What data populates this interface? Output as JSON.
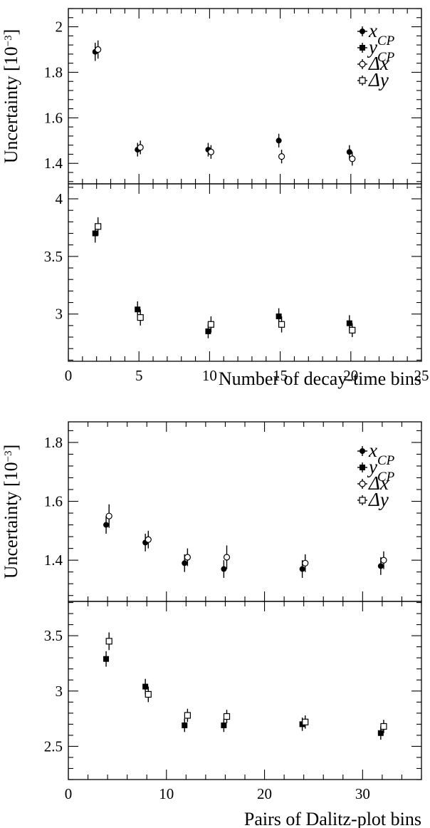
{
  "chart_data": [
    {
      "type": "scatter",
      "x_axis": {
        "label": "Number of decay-time bins",
        "range": [
          0,
          25
        ],
        "ticks": [
          0,
          5,
          10,
          15,
          20,
          25
        ]
      },
      "y_axis_label": "Uncertainty [10^-3]",
      "legend": [
        {
          "marker": "filled-circle",
          "label": "x_CP"
        },
        {
          "marker": "filled-square",
          "label": "y_CP"
        },
        {
          "marker": "open-circle",
          "label": "Δx"
        },
        {
          "marker": "open-square",
          "label": "Δy"
        }
      ],
      "legend_placement": "top-right",
      "panels": [
        {
          "range": [
            1.31,
            2.08
          ],
          "ticks": [
            1.4,
            1.6,
            1.8,
            2
          ],
          "series": [
            {
              "name": "x_CP",
              "marker": "filled-circle",
              "offset": -0.1,
              "points": [
                {
                  "x": 2,
                  "y": 1.89,
                  "err": 0.04
                },
                {
                  "x": 5,
                  "y": 1.46,
                  "err": 0.03
                },
                {
                  "x": 10,
                  "y": 1.46,
                  "err": 0.03
                },
                {
                  "x": 15,
                  "y": 1.5,
                  "err": 0.03
                },
                {
                  "x": 20,
                  "y": 1.45,
                  "err": 0.03
                }
              ]
            },
            {
              "name": "Δx",
              "marker": "open-circle",
              "offset": 0.1,
              "points": [
                {
                  "x": 2,
                  "y": 1.9,
                  "err": 0.04
                },
                {
                  "x": 5,
                  "y": 1.47,
                  "err": 0.03
                },
                {
                  "x": 10,
                  "y": 1.45,
                  "err": 0.03
                },
                {
                  "x": 15,
                  "y": 1.43,
                  "err": 0.03
                },
                {
                  "x": 20,
                  "y": 1.42,
                  "err": 0.03
                }
              ]
            }
          ]
        },
        {
          "range": [
            2.59,
            4.13
          ],
          "ticks": [
            3,
            3.5,
            4
          ],
          "series": [
            {
              "name": "y_CP",
              "marker": "filled-square",
              "offset": -0.1,
              "points": [
                {
                  "x": 2,
                  "y": 3.7,
                  "err": 0.08
                },
                {
                  "x": 5,
                  "y": 3.04,
                  "err": 0.07
                },
                {
                  "x": 10,
                  "y": 2.85,
                  "err": 0.06
                },
                {
                  "x": 15,
                  "y": 2.98,
                  "err": 0.07
                },
                {
                  "x": 20,
                  "y": 2.92,
                  "err": 0.07
                }
              ]
            },
            {
              "name": "Δy",
              "marker": "open-square",
              "offset": 0.1,
              "points": [
                {
                  "x": 2,
                  "y": 3.76,
                  "err": 0.08
                },
                {
                  "x": 5,
                  "y": 2.97,
                  "err": 0.07
                },
                {
                  "x": 10,
                  "y": 2.91,
                  "err": 0.07
                },
                {
                  "x": 15,
                  "y": 2.91,
                  "err": 0.07
                },
                {
                  "x": 20,
                  "y": 2.86,
                  "err": 0.06
                }
              ]
            }
          ]
        }
      ]
    },
    {
      "type": "scatter",
      "x_axis": {
        "label": "Pairs of Dalitz-plot bins",
        "range": [
          0,
          36
        ],
        "ticks": [
          0,
          10,
          20,
          30
        ]
      },
      "y_axis_label": "Uncertainty [10^-3]",
      "legend": [
        {
          "marker": "filled-circle",
          "label": "x_CP"
        },
        {
          "marker": "filled-square",
          "label": "y_CP"
        },
        {
          "marker": "open-circle",
          "label": "Δx"
        },
        {
          "marker": "open-square",
          "label": "Δy"
        }
      ],
      "legend_placement": "top-right",
      "panels": [
        {
          "range": [
            1.26,
            1.87
          ],
          "ticks": [
            1.4,
            1.6,
            1.8
          ],
          "series": [
            {
              "name": "x_CP",
              "marker": "filled-circle",
              "offset": -0.15,
              "points": [
                {
                  "x": 4,
                  "y": 1.52,
                  "err": 0.03
                },
                {
                  "x": 8,
                  "y": 1.46,
                  "err": 0.03
                },
                {
                  "x": 12,
                  "y": 1.39,
                  "err": 0.03
                },
                {
                  "x": 16,
                  "y": 1.37,
                  "err": 0.03
                },
                {
                  "x": 24,
                  "y": 1.37,
                  "err": 0.03
                },
                {
                  "x": 32,
                  "y": 1.38,
                  "err": 0.03
                }
              ]
            },
            {
              "name": "Δx",
              "marker": "open-circle",
              "offset": 0.15,
              "points": [
                {
                  "x": 4,
                  "y": 1.55,
                  "err": 0.04
                },
                {
                  "x": 8,
                  "y": 1.47,
                  "err": 0.03
                },
                {
                  "x": 12,
                  "y": 1.41,
                  "err": 0.03
                },
                {
                  "x": 16,
                  "y": 1.41,
                  "err": 0.04
                },
                {
                  "x": 24,
                  "y": 1.39,
                  "err": 0.03
                },
                {
                  "x": 32,
                  "y": 1.4,
                  "err": 0.03
                }
              ]
            }
          ]
        },
        {
          "range": [
            2.2,
            3.81
          ],
          "ticks": [
            2.5,
            3,
            3.5
          ],
          "series": [
            {
              "name": "y_CP",
              "marker": "filled-square",
              "offset": -0.15,
              "points": [
                {
                  "x": 4,
                  "y": 3.29,
                  "err": 0.07
                },
                {
                  "x": 8,
                  "y": 3.04,
                  "err": 0.07
                },
                {
                  "x": 12,
                  "y": 2.69,
                  "err": 0.06
                },
                {
                  "x": 16,
                  "y": 2.69,
                  "err": 0.06
                },
                {
                  "x": 24,
                  "y": 2.7,
                  "err": 0.06
                },
                {
                  "x": 32,
                  "y": 2.62,
                  "err": 0.06
                }
              ]
            },
            {
              "name": "Δy",
              "marker": "open-square",
              "offset": 0.15,
              "points": [
                {
                  "x": 4,
                  "y": 3.45,
                  "err": 0.08
                },
                {
                  "x": 8,
                  "y": 2.97,
                  "err": 0.07
                },
                {
                  "x": 12,
                  "y": 2.78,
                  "err": 0.06
                },
                {
                  "x": 16,
                  "y": 2.77,
                  "err": 0.06
                },
                {
                  "x": 24,
                  "y": 2.72,
                  "err": 0.06
                },
                {
                  "x": 32,
                  "y": 2.68,
                  "err": 0.06
                }
              ]
            }
          ]
        }
      ]
    }
  ]
}
